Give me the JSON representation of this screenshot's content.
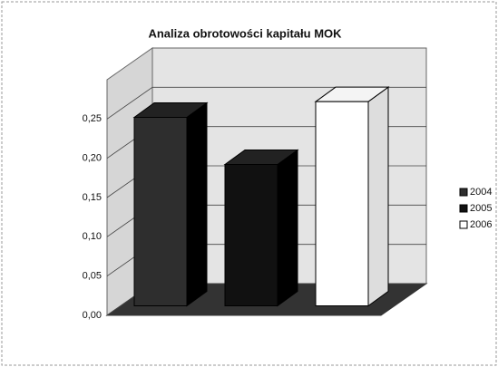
{
  "chart_data": {
    "type": "bar3d",
    "title": "Analiza obrotowości kapitału MOK",
    "series": [
      {
        "name": "2004",
        "color": "#2e2e2e",
        "values": [
          0.24
        ]
      },
      {
        "name": "2005",
        "color": "#111111",
        "values": [
          0.18
        ]
      },
      {
        "name": "2006",
        "color": "#ffffff",
        "values": [
          0.26
        ]
      }
    ],
    "ylim": [
      0,
      0.3
    ],
    "yticks": [
      {
        "value": 0,
        "label": "0,00"
      },
      {
        "value": 0.05,
        "label": "0,05"
      },
      {
        "value": 0.1,
        "label": "0,10"
      },
      {
        "value": 0.15,
        "label": "0,15"
      },
      {
        "value": 0.2,
        "label": "0,20"
      },
      {
        "value": 0.25,
        "label": "0,25"
      }
    ],
    "grid": true,
    "legend": "right"
  }
}
